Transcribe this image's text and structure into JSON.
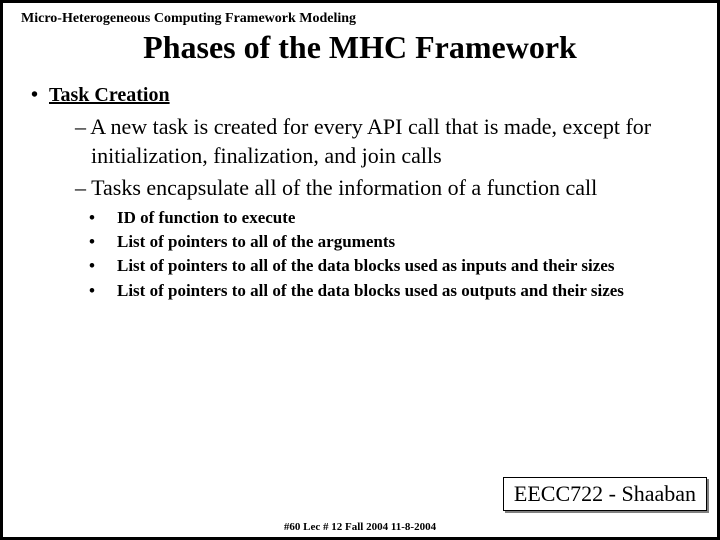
{
  "header_small": "Micro-Heterogeneous Computing Framework Modeling",
  "title": "Phases of the MHC Framework",
  "section": {
    "label": "Task Creation",
    "items": [
      "A new task is created for every API call that is made, except for initialization, finalization, and join calls",
      "Tasks encapsulate all of the information of a function call"
    ],
    "subitems": [
      "ID of function to execute",
      "List of pointers to all of the arguments",
      "List of pointers to all of the data blocks used as inputs and their sizes",
      "List of pointers to all of the data blocks used as outputs and their sizes"
    ]
  },
  "footer_box": "EECC722 - Shaaban",
  "footer_text": "#60  Lec # 12  Fall 2004  11-8-2004"
}
